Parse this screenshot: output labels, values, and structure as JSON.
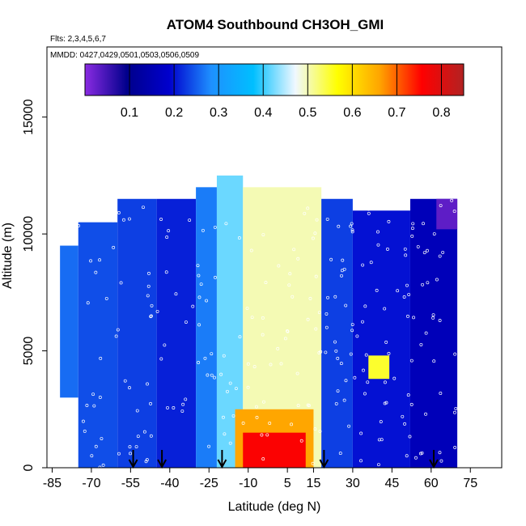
{
  "chart_data": {
    "type": "heatmap",
    "title": "ATOM4 Southbound CH3OH_GMI",
    "subtitle": "Flts: 2,3,4,5,6,7",
    "note": "MMDD: 0427,0429,0501,0503,0506,0509",
    "xlabel": "Latitude (deg N)",
    "ylabel": "Altitude (m)",
    "xlim": [
      -87,
      87
    ],
    "ylim": [
      0,
      18000
    ],
    "x_ticks": [
      -85,
      -70,
      -55,
      -40,
      -25,
      -10,
      5,
      15,
      30,
      45,
      60,
      75
    ],
    "x_tick_labels": [
      "-85",
      "-70",
      "-55",
      "-40",
      "-25",
      "-10",
      "5",
      "15",
      "30",
      "45",
      "60",
      "75"
    ],
    "y_ticks": [
      0,
      5000,
      10000,
      15000
    ],
    "y_tick_labels": [
      "0",
      "5000",
      "10000",
      "15000"
    ],
    "colorbar": {
      "min": 0.0,
      "max": 0.85,
      "ticks": [
        0.1,
        0.2,
        0.3,
        0.4,
        0.5,
        0.6,
        0.7,
        0.8
      ],
      "tick_labels": [
        "0.1",
        "0.2",
        "0.3",
        "0.4",
        "0.5",
        "0.6",
        "0.7",
        "0.8"
      ],
      "colors": [
        "#8a2be2",
        "#00008b",
        "#0000cd",
        "#1e90ff",
        "#00bfff",
        "#f0f8ff",
        "#ffff00",
        "#ffa500",
        "#ff0000",
        "#b22222"
      ]
    },
    "flight_arrows_lat": [
      -54,
      -43,
      -20,
      19,
      61
    ],
    "regions": [
      {
        "lat": [
          -82,
          -75
        ],
        "alt": [
          3000,
          9500
        ],
        "value": 0.26
      },
      {
        "lat": [
          -75,
          -60
        ],
        "alt": [
          0,
          10500
        ],
        "value": 0.24
      },
      {
        "lat": [
          -60,
          -45
        ],
        "alt": [
          0,
          11500
        ],
        "value": 0.23
      },
      {
        "lat": [
          -45,
          -30
        ],
        "alt": [
          0,
          11500
        ],
        "value": 0.21
      },
      {
        "lat": [
          -30,
          -22
        ],
        "alt": [
          0,
          12000
        ],
        "value": 0.27
      },
      {
        "lat": [
          -22,
          -12
        ],
        "alt": [
          0,
          12500
        ],
        "value": 0.42
      },
      {
        "lat": [
          -12,
          18
        ],
        "alt": [
          0,
          12000
        ],
        "value": 0.5
      },
      {
        "lat": [
          -15,
          15
        ],
        "alt": [
          0,
          2500
        ],
        "value": 0.66
      },
      {
        "lat": [
          -12,
          12
        ],
        "alt": [
          0,
          1500
        ],
        "value": 0.76
      },
      {
        "lat": [
          18,
          30
        ],
        "alt": [
          0,
          11500
        ],
        "value": 0.23
      },
      {
        "lat": [
          30,
          52
        ],
        "alt": [
          0,
          11000
        ],
        "value": 0.2
      },
      {
        "lat": [
          36,
          44
        ],
        "alt": [
          3800,
          4800
        ],
        "value": 0.55
      },
      {
        "lat": [
          52,
          70
        ],
        "alt": [
          0,
          11500
        ],
        "value": 0.16
      },
      {
        "lat": [
          62,
          70
        ],
        "alt": [
          10200,
          11500
        ],
        "value": 0.03
      }
    ]
  }
}
